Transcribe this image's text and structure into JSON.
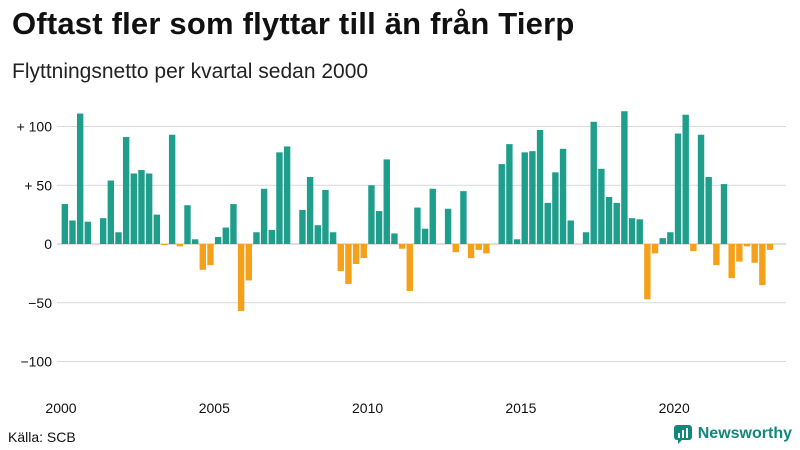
{
  "header": {
    "title": "Oftast fler som flyttar till än från Tierp",
    "subtitle": "Flyttningsnetto per kvartal sedan 2000"
  },
  "footer": {
    "source": "Källa: SCB",
    "brand": "Newsworthy",
    "brand_icon": "newsworthy-logo-icon"
  },
  "colors": {
    "positive": "#1f9e8c",
    "negative": "#f5a01a",
    "grid": "#d9d9d9",
    "brand": "#12877c"
  },
  "chart_data": {
    "type": "bar",
    "title": "Oftast fler som flyttar till än från Tierp",
    "subtitle": "Flyttningsnetto per kvartal sedan 2000",
    "xlabel": "",
    "ylabel": "",
    "ylim": [
      -110,
      115
    ],
    "y_ticks": [
      100,
      50,
      0,
      -50,
      -100
    ],
    "y_tick_labels": [
      "+ 100",
      "+ 50",
      "0",
      "−50",
      "−100"
    ],
    "x_tick_labels": [
      "2000",
      "2005",
      "2010",
      "2015",
      "2020"
    ],
    "grid": true,
    "legend": "none",
    "start_year": 2000,
    "start_quarter": 1,
    "values": [
      34,
      20,
      111,
      19,
      0,
      22,
      54,
      10,
      91,
      60,
      63,
      60,
      25,
      -1,
      93,
      -2,
      33,
      4,
      -22,
      -18,
      6,
      14,
      34,
      -57,
      -31,
      10,
      47,
      12,
      78,
      83,
      0,
      29,
      57,
      16,
      46,
      10,
      -23,
      -34,
      -17,
      -12,
      50,
      28,
      72,
      9,
      -4,
      -40,
      31,
      13,
      47,
      0,
      30,
      -7,
      45,
      -12,
      -5,
      -8,
      0,
      68,
      85,
      4,
      78,
      79,
      97,
      35,
      61,
      81,
      20,
      0,
      10,
      104,
      64,
      40,
      35,
      113,
      22,
      21,
      -47,
      -8,
      5,
      10,
      94,
      110,
      -6,
      93,
      57,
      -18,
      51,
      -29,
      -15,
      -2,
      -16,
      -35,
      -5
    ]
  }
}
